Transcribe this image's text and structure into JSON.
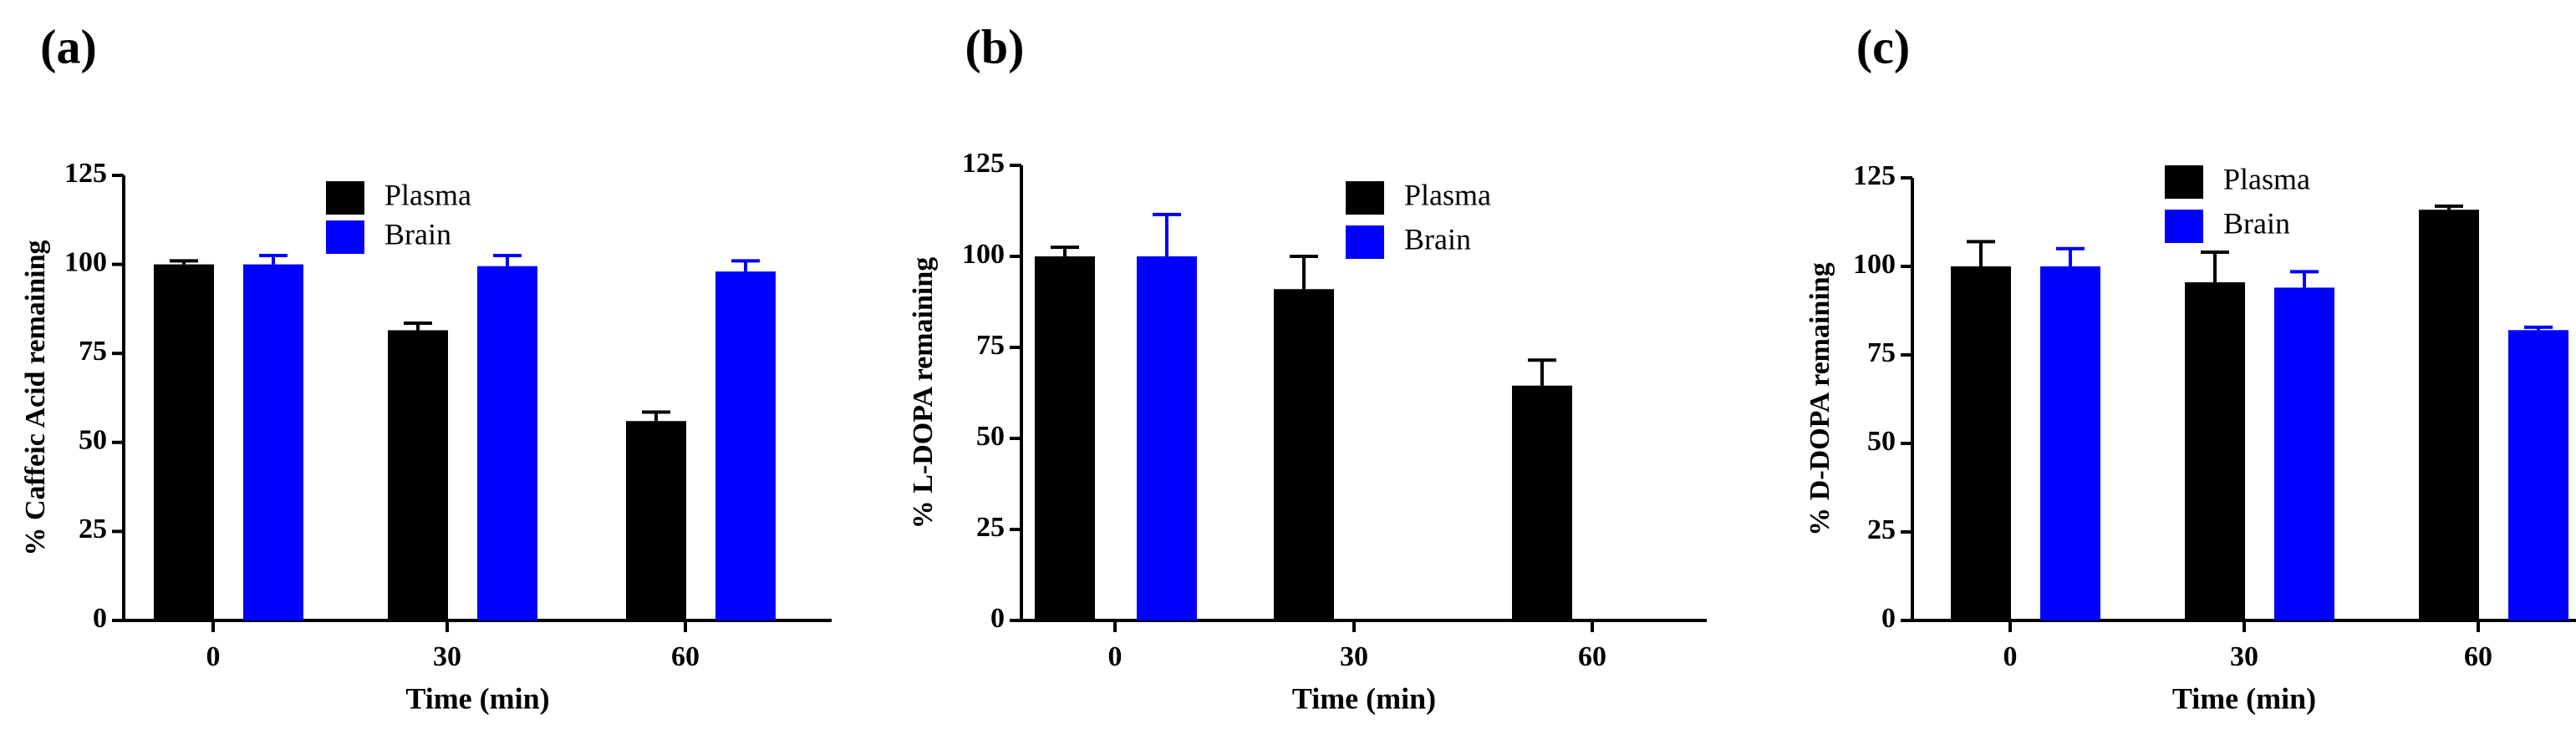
{
  "colors": {
    "plasma": "#000000",
    "brain": "#0000ff",
    "axis": "#000000",
    "background": "#ffffff"
  },
  "chart_data": [
    {
      "panel_label": "(a)",
      "type": "bar",
      "xlabel": "Time (min)",
      "ylabel": "% Caffeic Acid remaining",
      "ylim": [
        0,
        125
      ],
      "yticks": [
        0,
        25,
        50,
        75,
        100,
        125
      ],
      "categories": [
        "0",
        "30",
        "60"
      ],
      "legend_position": "top-center",
      "series": [
        {
          "name": "Plasma",
          "values": [
            100,
            81.5,
            56
          ],
          "errors": [
            1,
            2,
            2.5
          ]
        },
        {
          "name": "Brain",
          "values": [
            100,
            99.5,
            98
          ],
          "errors": [
            2.5,
            3,
            3
          ]
        }
      ]
    },
    {
      "panel_label": "(b)",
      "type": "bar",
      "xlabel": "Time (min)",
      "ylabel": "% L-DOPA remaining",
      "ylim": [
        0,
        125
      ],
      "yticks": [
        0,
        25,
        50,
        75,
        100,
        125
      ],
      "categories": [
        "0",
        "30",
        "60"
      ],
      "legend_position": "top-center",
      "series": [
        {
          "name": "Plasma",
          "values": [
            100,
            91,
            64.5
          ],
          "errors": [
            2.5,
            9,
            7
          ]
        },
        {
          "name": "Brain",
          "values": [
            100,
            null,
            null
          ],
          "errors": [
            11.5,
            null,
            null
          ]
        }
      ]
    },
    {
      "panel_label": "(c)",
      "type": "bar",
      "xlabel": "Time (min)",
      "ylabel": "% D-DOPA remaining",
      "ylim": [
        0,
        125
      ],
      "yticks": [
        0,
        25,
        50,
        75,
        100,
        125
      ],
      "categories": [
        "0",
        "30",
        "60"
      ],
      "legend_position": "top-center",
      "series": [
        {
          "name": "Plasma",
          "values": [
            100,
            95.5,
            116
          ],
          "errors": [
            7,
            8.5,
            1
          ]
        },
        {
          "name": "Brain",
          "values": [
            100,
            94,
            82
          ],
          "errors": [
            5,
            4.5,
            0.8
          ]
        }
      ]
    }
  ]
}
